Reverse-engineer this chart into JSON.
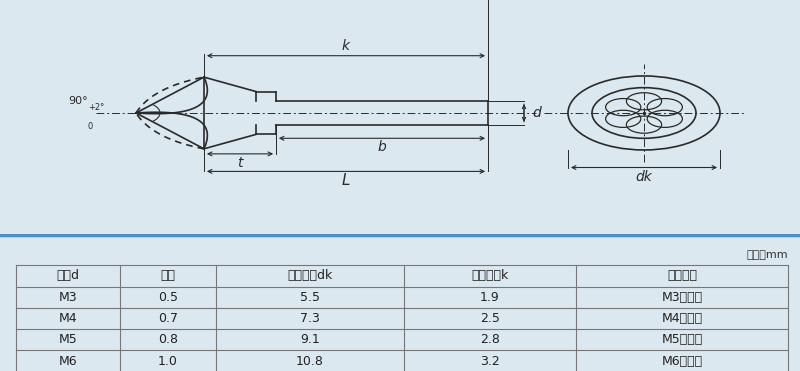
{
  "bg_top": "#dce8f0",
  "bg_bottom": "#ffffff",
  "line_color": "#2a2a2a",
  "dim_color": "#2a2a2a",
  "unit_text": "单位：mm",
  "headers": [
    "规格d",
    "牙距",
    "头部直径dk",
    "头部厚度k",
    "搭配扳手"
  ],
  "rows": [
    [
      "M3",
      "0.5",
      "5.5",
      "1.9",
      "M3用扳手"
    ],
    [
      "M4",
      "0.7",
      "7.3",
      "2.5",
      "M4用扳手"
    ],
    [
      "M5",
      "0.8",
      "9.1",
      "2.8",
      "M5用扳手"
    ],
    [
      "M6",
      "1.0",
      "10.8",
      "3.2",
      "M6用扳手"
    ]
  ],
  "labels": {
    "k": "k",
    "d": "d",
    "b": "b",
    "t": "t",
    "L": "L",
    "dk": "dk"
  },
  "angle_text": "90°+2°\n   0",
  "font_size_table": 9,
  "font_size_label": 9
}
